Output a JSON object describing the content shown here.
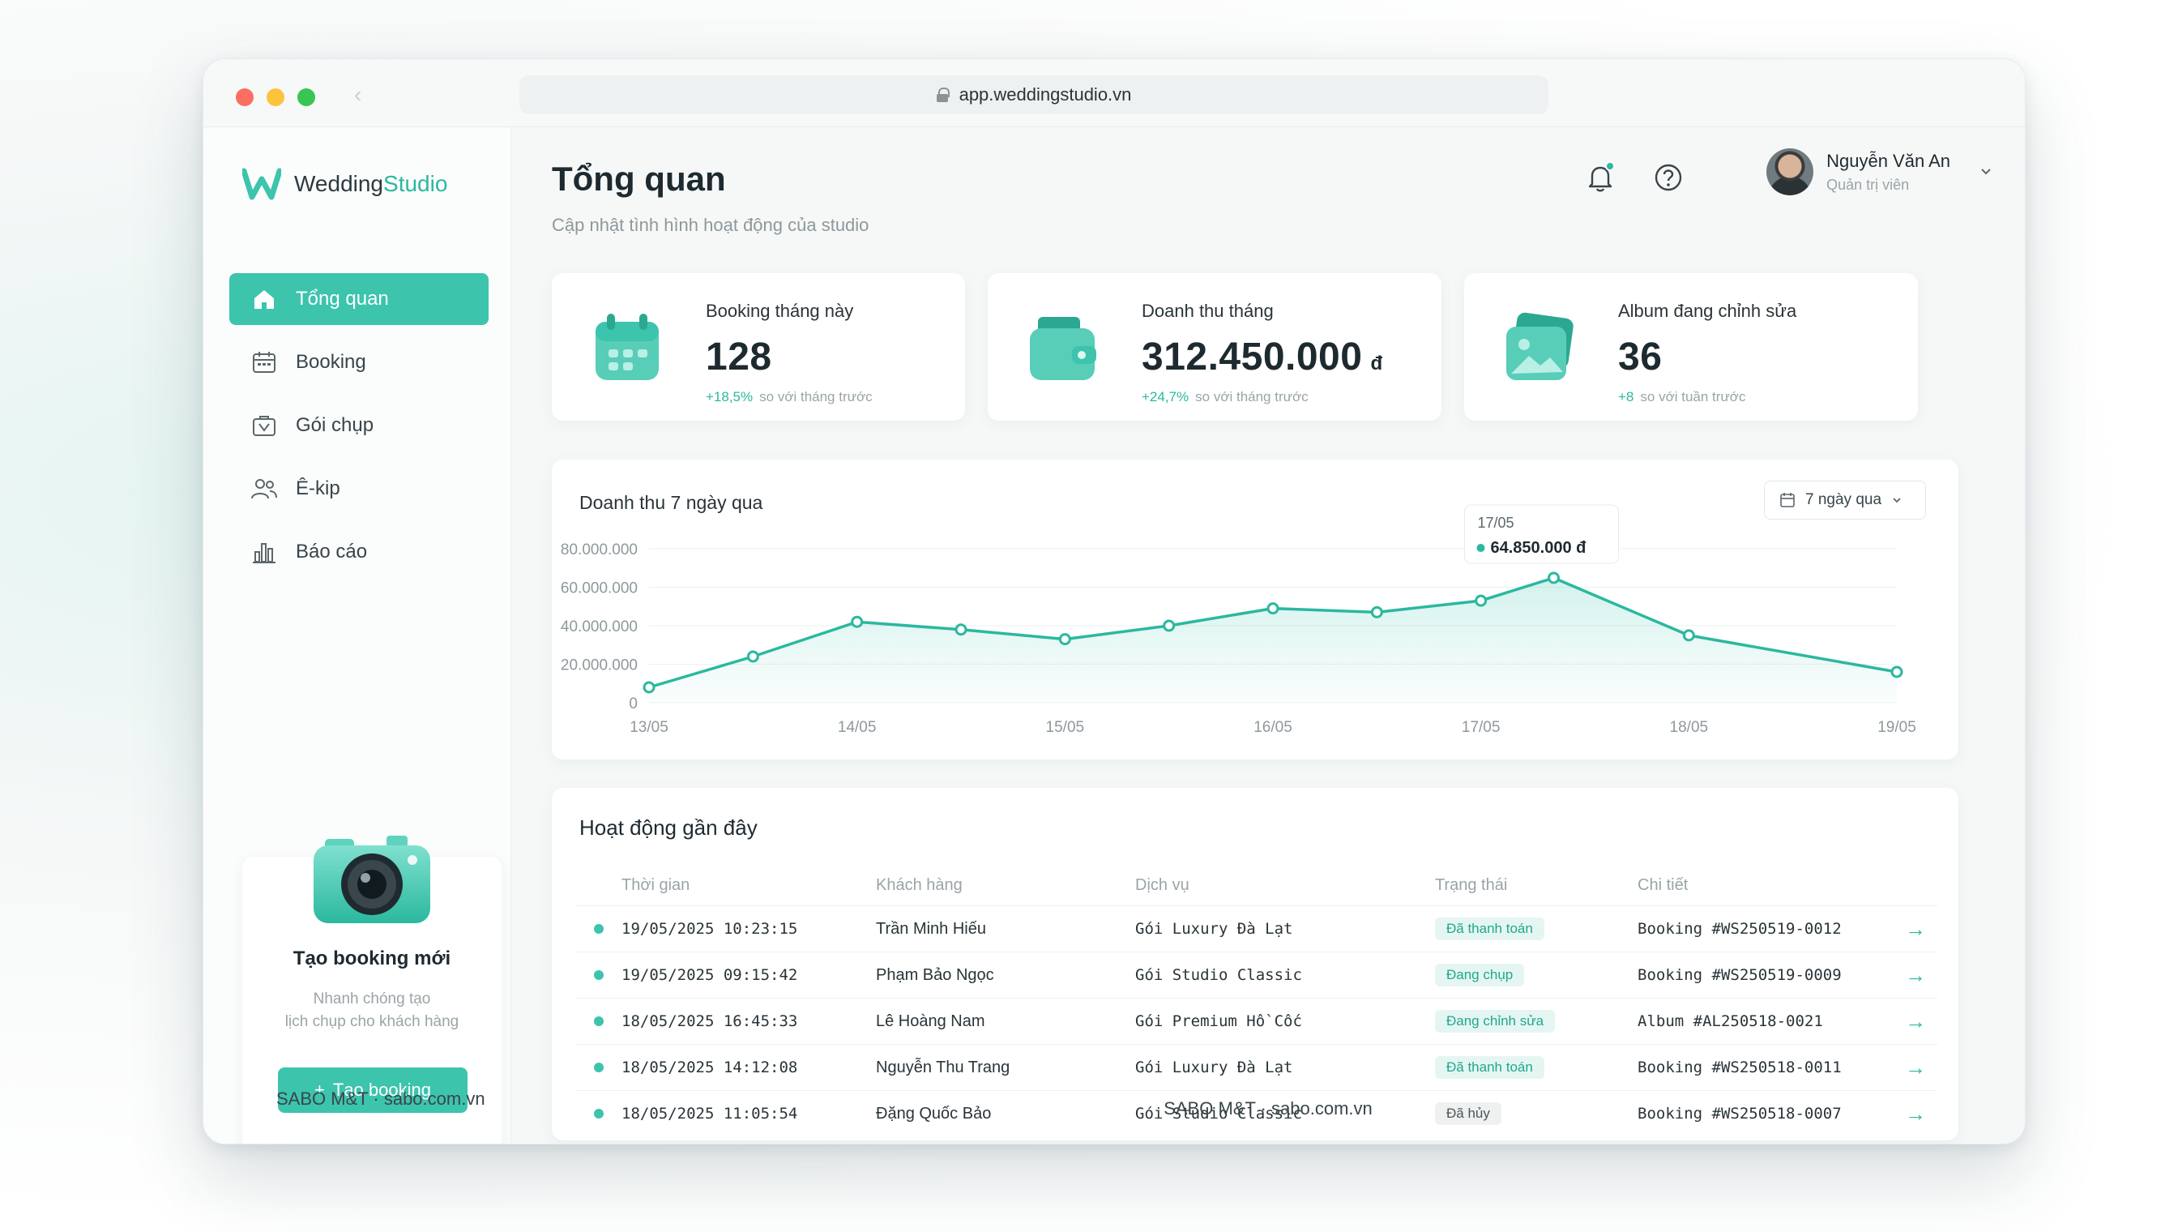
{
  "browser": {
    "url": "app.weddingstudio.vn"
  },
  "sidebar": {
    "logo": {
      "part1": "Wedding",
      "part2": "Studio"
    },
    "items": [
      {
        "label": "Tổng quan",
        "icon": "home-icon",
        "active": true
      },
      {
        "label": "Booking",
        "icon": "calendar-icon"
      },
      {
        "label": "Gói chụp",
        "icon": "package-icon"
      },
      {
        "label": "Ê-kip",
        "icon": "team-icon"
      },
      {
        "label": "Báo cáo",
        "icon": "bar-chart-icon"
      }
    ],
    "promo": {
      "title": "Tạo booking mới",
      "desc_line1": "Nhanh chóng tạo",
      "desc_line2": "lịch chụp cho khách hàng",
      "button": "Tạo booking"
    },
    "footer": "SABO M&T · sabo.com.vn"
  },
  "header": {
    "title": "Tổng quan",
    "subtitle": "Cập nhật tình hình hoạt động của studio",
    "user": {
      "name": "Nguyễn Văn An",
      "role": "Quản trị viên"
    }
  },
  "stats": [
    {
      "label": "Booking tháng này",
      "value": "128",
      "unit": "",
      "delta": "+18,5%",
      "delta_text": "so với tháng trước"
    },
    {
      "label": "Doanh thu tháng",
      "value": "312.450.000",
      "unit": "đ",
      "delta": "+24,7%",
      "delta_text": "so với tháng trước"
    },
    {
      "label": "Album đang chỉnh sửa",
      "value": "36",
      "unit": "",
      "delta": "+8",
      "delta_text": "so với tuần trước"
    }
  ],
  "revenue_chart": {
    "range_label": "7 ngày qua",
    "tooltip": {
      "date": "17/05",
      "value": "64.850.000 đ"
    }
  },
  "chart_data": {
    "type": "area",
    "title": "Doanh thu 7 ngày qua",
    "x": [
      "13/05",
      "13.5",
      "14/05",
      "14.5",
      "15/05",
      "15.5",
      "16/05",
      "16.5",
      "17/05",
      "17.3",
      "18/05",
      "19/05"
    ],
    "x_ticks": [
      "13/05",
      "14/05",
      "15/05",
      "16/05",
      "17/05",
      "18/05",
      "19/05"
    ],
    "x_pos": [
      0,
      0.5,
      1,
      1.5,
      2,
      2.5,
      3,
      3.5,
      4,
      4.35,
      5,
      6
    ],
    "values": [
      8000000,
      24000000,
      42000000,
      38000000,
      33000000,
      40000000,
      49000000,
      47000000,
      53000000,
      64850000,
      35000000,
      16000000
    ],
    "y_ticks": [
      "80.000.000",
      "60.000.000",
      "40.000.000",
      "20.000.000",
      "0"
    ],
    "ylim": [
      0,
      80000000
    ],
    "color": "#2bb89f",
    "grid": true
  },
  "activity": {
    "title": "Hoạt động gần đây",
    "columns": [
      "Thời gian",
      "Khách hàng",
      "Dịch vụ",
      "Trạng thái",
      "Chi tiết"
    ],
    "rows": [
      {
        "time": "19/05/2025 10:23:15",
        "customer": "Trần Minh Hiếu",
        "service": "Gói Luxury Đà Lạt",
        "status": "Đã thanh toán",
        "status_type": "green",
        "detail": "Booking #WS250519-0012"
      },
      {
        "time": "19/05/2025 09:15:42",
        "customer": "Phạm Bảo Ngọc",
        "service": "Gói Studio Classic",
        "status": "Đang chụp",
        "status_type": "green",
        "detail": "Booking #WS250519-0009"
      },
      {
        "time": "18/05/2025 16:45:33",
        "customer": "Lê Hoàng Nam",
        "service": "Gói Premium Hồ Cốc",
        "status": "Đang chỉnh sửa",
        "status_type": "green",
        "detail": "Album #AL250518-0021"
      },
      {
        "time": "18/05/2025 14:12:08",
        "customer": "Nguyễn Thu Trang",
        "service": "Gói Luxury Đà Lạt",
        "status": "Đã thanh toán",
        "status_type": "green",
        "detail": "Booking #WS250518-0011"
      },
      {
        "time": "18/05/2025 11:05:54",
        "customer": "Đặng Quốc Bảo",
        "service": "Gói Studio Classic",
        "status": "Đã hủy",
        "status_type": "grey",
        "detail": "Booking #WS250518-0007"
      }
    ]
  },
  "footer": "SABO M&T · sabo.com.vn",
  "colors": {
    "accent": "#3cc4ad",
    "accent_dark": "#2bb89f",
    "background": "#f6f8f8"
  }
}
